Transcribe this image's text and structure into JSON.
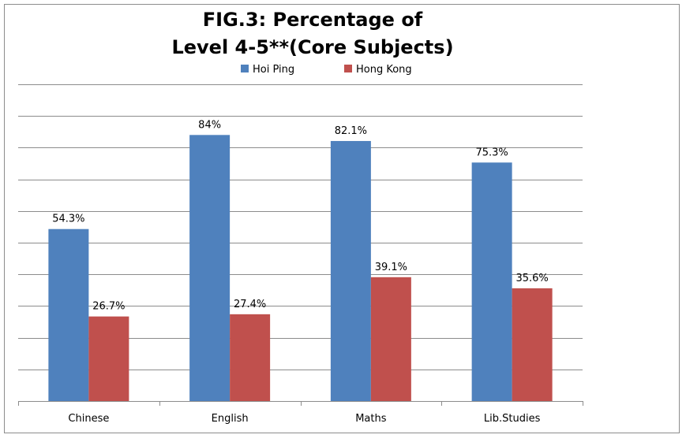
{
  "chart_data": {
    "type": "bar",
    "title_lines": [
      "FIG.3: Percentage of",
      "Level 4-5**(Core Subjects)"
    ],
    "categories": [
      "Chinese",
      "English",
      "Maths",
      "Lib.Studies"
    ],
    "series": [
      {
        "name": "Hoi Ping",
        "color": "#4f81bd",
        "values": [
          54.3,
          84,
          82.1,
          75.3
        ],
        "labels": [
          "54.3%",
          "84%",
          "82.1%",
          "75.3%"
        ]
      },
      {
        "name": "Hong Kong",
        "color": "#c0504d",
        "values": [
          26.7,
          27.4,
          39.1,
          35.6
        ],
        "labels": [
          "26.7%",
          "27.4%",
          "39.1%",
          "35.6%"
        ]
      }
    ],
    "ylim": [
      0,
      100
    ],
    "grid": true,
    "legend_position": "top"
  }
}
